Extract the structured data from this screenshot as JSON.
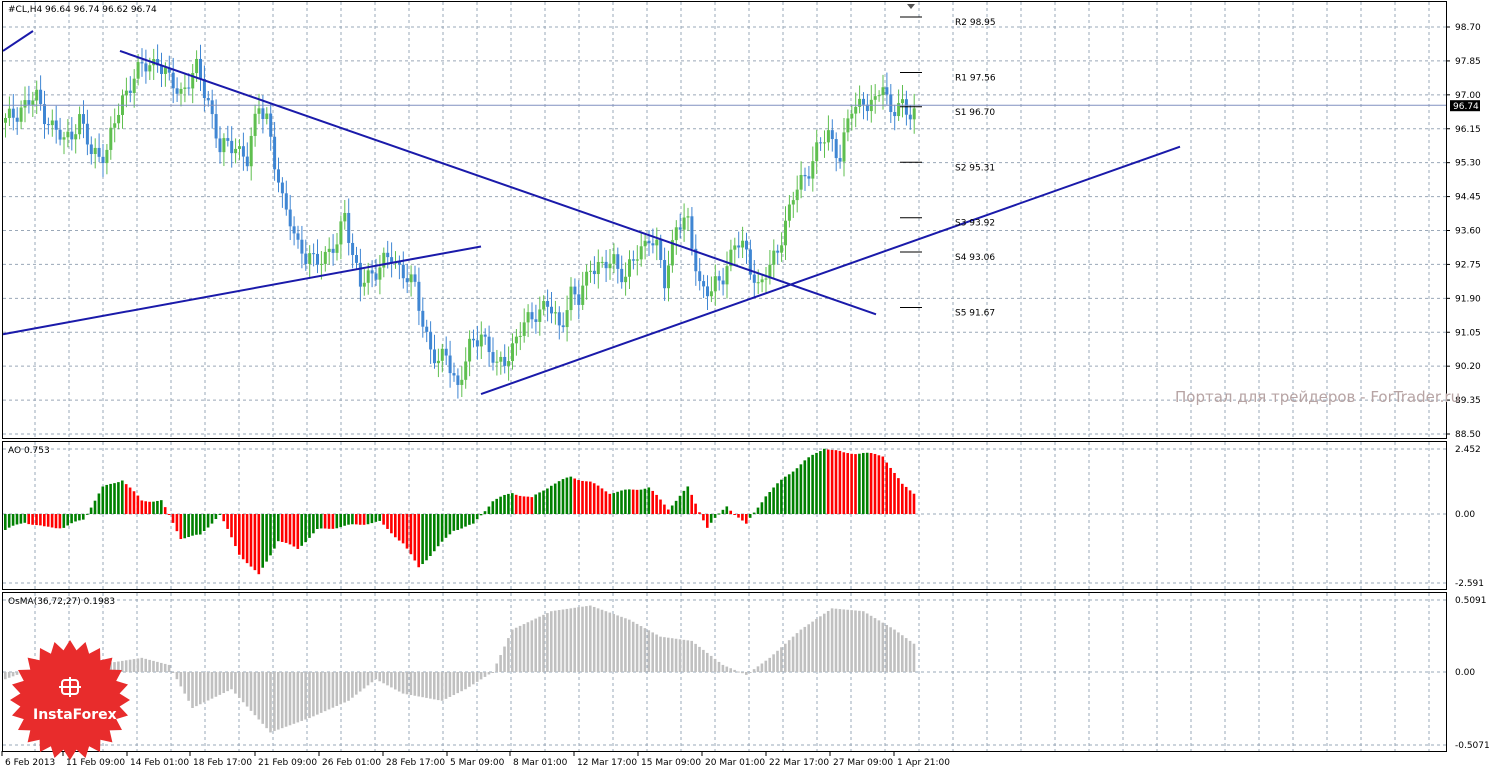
{
  "chart_data": [
    {
      "type": "candlestick",
      "name": "price",
      "symbol_line": "#CL,H4  96.64 96.74 96.62 96.74",
      "ylim": [
        88.5,
        99.3
      ],
      "y_ticks": [
        "98.70",
        "97.85",
        "97.00",
        "96.15",
        "95.30",
        "94.45",
        "93.60",
        "92.75",
        "91.90",
        "91.05",
        "90.20",
        "89.35",
        "88.50"
      ],
      "current_price": "96.74",
      "colors": {
        "up": "#5fbf4f",
        "down": "#3f86d3",
        "trend": "#1a1aaa",
        "grid": "#9aa8b8",
        "current": "#8090c0"
      },
      "x_labels": [
        "6 Feb 2013",
        "11 Feb 09:00",
        "14 Feb 01:00",
        "18 Feb 17:00",
        "21 Feb 09:00",
        "26 Feb 01:00",
        "28 Feb 17:00",
        "5 Mar 09:00",
        "8 Mar 01:00",
        "12 Mar 17:00",
        "15 Mar 09:00",
        "20 Mar 01:00",
        "22 Mar 17:00",
        "27 Mar 09:00",
        "1 Apr 21:00"
      ],
      "close_path": [
        [
          0,
          96.3
        ],
        [
          4,
          96.7
        ],
        [
          8,
          96.9
        ],
        [
          12,
          96.2
        ],
        [
          15,
          95.8
        ],
        [
          19,
          96.4
        ],
        [
          22,
          95.5
        ],
        [
          26,
          95.6
        ],
        [
          30,
          96.9
        ],
        [
          33,
          97.5
        ],
        [
          36,
          97.7
        ],
        [
          39,
          97.9
        ],
        [
          42,
          97.3
        ],
        [
          45,
          97.1
        ],
        [
          49,
          97.6
        ],
        [
          52,
          96.9
        ],
        [
          55,
          95.6
        ],
        [
          59,
          95.8
        ],
        [
          62,
          95.3
        ],
        [
          65,
          96.8
        ],
        [
          67,
          96.5
        ],
        [
          69,
          95.2
        ],
        [
          71,
          94.3
        ],
        [
          73,
          94.0
        ],
        [
          75,
          93.2
        ],
        [
          77,
          92.8
        ],
        [
          80,
          93.0
        ],
        [
          82,
          92.9
        ],
        [
          85,
          93.2
        ],
        [
          87,
          94.2
        ],
        [
          89,
          92.9
        ],
        [
          91,
          92.2
        ],
        [
          93,
          92.5
        ],
        [
          96,
          92.7
        ],
        [
          99,
          92.9
        ],
        [
          102,
          92.6
        ],
        [
          105,
          92.1
        ],
        [
          107,
          91.3
        ],
        [
          109,
          90.7
        ],
        [
          111,
          90.2
        ],
        [
          113,
          90.5
        ],
        [
          116,
          89.7
        ],
        [
          119,
          90.6
        ],
        [
          122,
          91.1
        ],
        [
          124,
          90.6
        ],
        [
          126,
          90.1
        ],
        [
          128,
          90.4
        ],
        [
          130,
          90.7
        ],
        [
          133,
          91.2
        ],
        [
          136,
          91.6
        ],
        [
          139,
          91.7
        ],
        [
          142,
          91.2
        ],
        [
          145,
          92.0
        ],
        [
          147,
          91.8
        ],
        [
          150,
          92.8
        ],
        [
          153,
          92.6
        ],
        [
          156,
          92.9
        ],
        [
          159,
          92.4
        ],
        [
          162,
          93.0
        ],
        [
          165,
          93.5
        ],
        [
          167,
          93.1
        ],
        [
          169,
          92.3
        ],
        [
          172,
          93.8
        ],
        [
          175,
          93.7
        ],
        [
          178,
          92.3
        ],
        [
          181,
          92.0
        ],
        [
          184,
          92.5
        ],
        [
          187,
          93.3
        ],
        [
          190,
          93.0
        ],
        [
          193,
          92.2
        ],
        [
          196,
          92.6
        ],
        [
          199,
          93.5
        ],
        [
          202,
          94.4
        ],
        [
          205,
          95.0
        ],
        [
          208,
          95.6
        ],
        [
          211,
          96.0
        ],
        [
          214,
          95.5
        ],
        [
          217,
          96.6
        ],
        [
          220,
          96.9
        ],
        [
          223,
          96.7
        ],
        [
          225,
          97.3
        ],
        [
          227,
          96.6
        ],
        [
          229,
          96.8
        ],
        [
          231,
          96.4
        ],
        [
          233,
          96.7
        ]
      ],
      "trendlines": [
        {
          "name": "top-left-stub",
          "from": [
            "6 Feb 2013",
            98.1
          ],
          "to": [
            "7 Feb 2013",
            98.6
          ]
        },
        {
          "name": "resistance-falling",
          "from": [
            "11 Feb 12:00",
            98.1
          ],
          "to": [
            "27 Mar 09:00",
            91.5
          ]
        },
        {
          "name": "support-early",
          "from": [
            "6 Feb 2013",
            91.0
          ],
          "to": [
            "5 Mar 09:00",
            93.2
          ]
        },
        {
          "name": "support-rising",
          "from": [
            "5 Mar 09:00",
            89.5
          ],
          "to": [
            "4 Apr 2013",
            95.7
          ]
        }
      ],
      "levels": [
        {
          "label": "R2 98.95",
          "value": 98.95
        },
        {
          "label": "R1 97.56",
          "value": 97.56
        },
        {
          "label": "S1 96.70",
          "value": 96.7
        },
        {
          "label": "S2 95.31",
          "value": 95.31
        },
        {
          "label": "S3 93.92",
          "value": 93.92
        },
        {
          "label": "S4 93.06",
          "value": 93.06
        },
        {
          "label": "S5 91.67",
          "value": 91.67
        }
      ],
      "watermark": "Портал для трейдеров - ForTrader.ru"
    },
    {
      "type": "bar",
      "name": "AO",
      "title": "AO 0.753",
      "ylim": [
        -2.591,
        2.452
      ],
      "y_ticks": [
        "2.452",
        "0.00",
        "-2.591"
      ],
      "colors": {
        "up": "#008000",
        "down": "#ff0000"
      },
      "keypoints": [
        [
          0,
          -0.6
        ],
        [
          5,
          -0.3
        ],
        [
          10,
          -0.5
        ],
        [
          15,
          -0.5
        ],
        [
          20,
          -0.2
        ],
        [
          25,
          1.0
        ],
        [
          30,
          1.3
        ],
        [
          35,
          0.5
        ],
        [
          40,
          0.5
        ],
        [
          45,
          -0.9
        ],
        [
          50,
          -0.8
        ],
        [
          55,
          0.0
        ],
        [
          60,
          -1.5
        ],
        [
          65,
          -2.3
        ],
        [
          70,
          -1.0
        ],
        [
          75,
          -1.3
        ],
        [
          80,
          -0.6
        ],
        [
          85,
          -0.5
        ],
        [
          90,
          -0.4
        ],
        [
          96,
          -0.3
        ],
        [
          102,
          -1.1
        ],
        [
          106,
          -2.0
        ],
        [
          110,
          -1.4
        ],
        [
          115,
          -0.6
        ],
        [
          120,
          -0.4
        ],
        [
          125,
          0.5
        ],
        [
          130,
          0.8
        ],
        [
          135,
          0.6
        ],
        [
          140,
          1.1
        ],
        [
          145,
          1.4
        ],
        [
          150,
          1.2
        ],
        [
          155,
          0.8
        ],
        [
          160,
          0.9
        ],
        [
          165,
          1.0
        ],
        [
          170,
          0.2
        ],
        [
          175,
          1.0
        ],
        [
          180,
          -0.5
        ],
        [
          185,
          0.3
        ],
        [
          190,
          -0.4
        ],
        [
          195,
          0.7
        ],
        [
          200,
          1.4
        ],
        [
          205,
          2.0
        ],
        [
          210,
          2.5
        ],
        [
          215,
          2.3
        ],
        [
          220,
          2.3
        ],
        [
          225,
          2.2
        ],
        [
          230,
          1.1
        ],
        [
          233,
          0.8
        ]
      ]
    },
    {
      "type": "bar",
      "name": "OsMA",
      "title": "OsMA(36,72,27) 0.1983",
      "ylim": [
        -0.5071,
        0.5091
      ],
      "y_ticks": [
        "0.5091",
        "0.00",
        "-0.5071"
      ],
      "colors": {
        "bars": "#c0c0c0"
      },
      "keypoints": [
        [
          0,
          -0.05
        ],
        [
          10,
          0.05
        ],
        [
          20,
          0.05
        ],
        [
          28,
          0.07
        ],
        [
          35,
          0.1
        ],
        [
          42,
          0.05
        ],
        [
          48,
          -0.25
        ],
        [
          58,
          -0.12
        ],
        [
          68,
          -0.42
        ],
        [
          78,
          -0.32
        ],
        [
          88,
          -0.2
        ],
        [
          95,
          -0.05
        ],
        [
          102,
          -0.15
        ],
        [
          112,
          -0.2
        ],
        [
          118,
          -0.12
        ],
        [
          125,
          0.0
        ],
        [
          130,
          0.3
        ],
        [
          140,
          0.43
        ],
        [
          150,
          0.47
        ],
        [
          160,
          0.37
        ],
        [
          168,
          0.25
        ],
        [
          176,
          0.22
        ],
        [
          184,
          0.05
        ],
        [
          190,
          -0.02
        ],
        [
          196,
          0.1
        ],
        [
          204,
          0.3
        ],
        [
          212,
          0.45
        ],
        [
          220,
          0.43
        ],
        [
          228,
          0.3
        ],
        [
          233,
          0.2
        ]
      ]
    }
  ],
  "logo": {
    "brand": "InstaForex",
    "color": "#e82c2c"
  }
}
